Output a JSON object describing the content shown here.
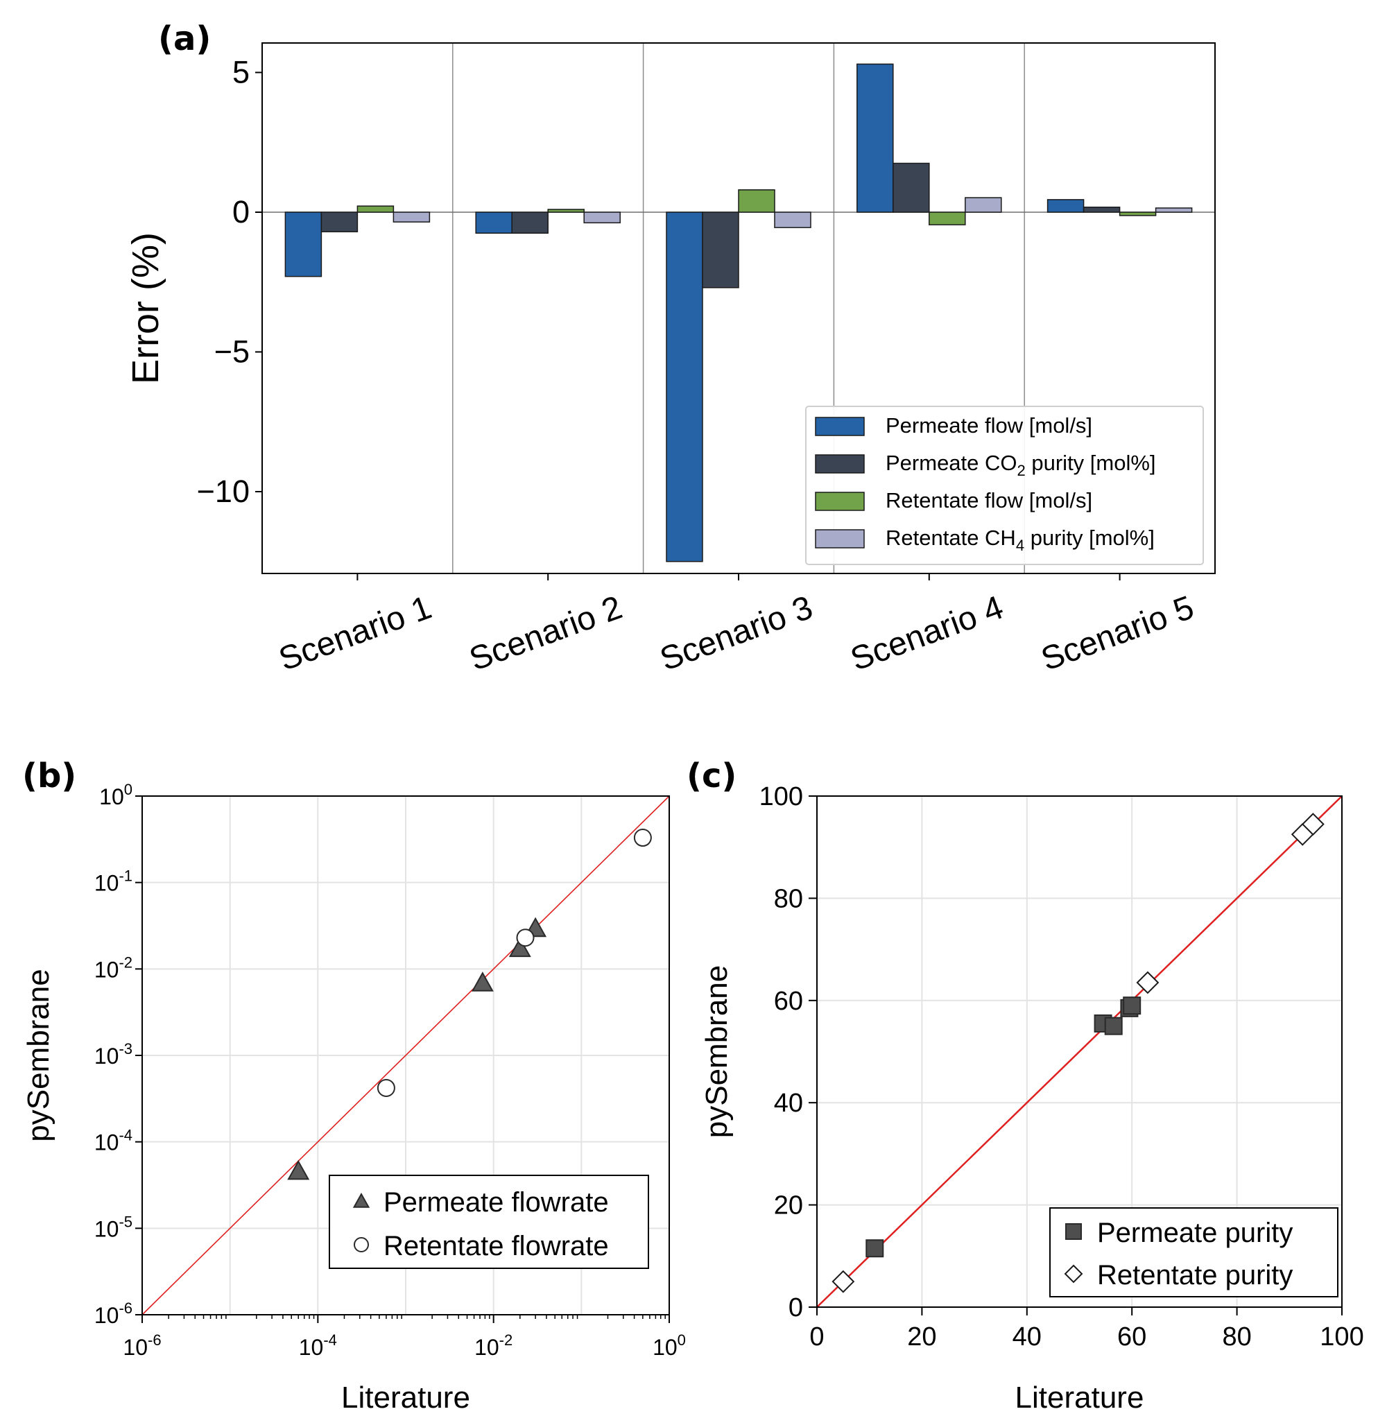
{
  "chart_data": [
    {
      "panel": "(a)",
      "type": "bar",
      "categories": [
        "Scenario 1",
        "Scenario 2",
        "Scenario 3",
        "Scenario 4",
        "Scenario 5"
      ],
      "ylabel": "Error (%)",
      "ylim": [
        -13,
        6
      ],
      "yticks": [
        5,
        0,
        -5,
        -10
      ],
      "ytick_labels": [
        "5",
        "0",
        "−5",
        "−10"
      ],
      "grid": "vertical separators between scenarios",
      "legend_position": "lower-right",
      "series": [
        {
          "name": "Permeate flow [mol/s]",
          "label_main": "Permeate flow [mol/s]",
          "color": "#2563a6",
          "values": [
            -2.3,
            -0.75,
            -12.5,
            5.3,
            0.45
          ]
        },
        {
          "name": "Permeate CO2 purity [mol%]",
          "label_pre": "Permeate CO",
          "label_sub": "2",
          "label_post": " purity [mol%]",
          "color": "#3b4452",
          "values": [
            -0.7,
            -0.75,
            -2.7,
            1.75,
            0.18
          ]
        },
        {
          "name": "Retentate flow [mol/s]",
          "label_main": "Retentate flow [mol/s]",
          "color": "#72a24a",
          "values": [
            0.22,
            0.1,
            0.8,
            -0.45,
            -0.12
          ]
        },
        {
          "name": "Retentate CH4 purity [mol%]",
          "label_pre": "Retentate CH",
          "label_sub": "4",
          "label_post": " purity [mol%]",
          "color": "#a9abcb",
          "values": [
            -0.35,
            -0.38,
            -0.55,
            0.52,
            0.15
          ]
        }
      ]
    },
    {
      "panel": "(b)",
      "type": "scatter",
      "xscale": "log",
      "yscale": "log",
      "xlabel": "Literature",
      "ylabel": "pySembrane",
      "xlim_exp": [
        -6,
        0
      ],
      "ylim_exp": [
        -6,
        0
      ],
      "xtick_exps": [
        -6,
        -4,
        -2,
        0
      ],
      "ytick_exps": [
        -6,
        -5,
        -4,
        -3,
        -2,
        -1,
        0
      ],
      "legend_position": "lower-right",
      "reference_line": "y = x",
      "series": [
        {
          "name": "Permeate flowrate",
          "marker": "triangle",
          "x": [
            6e-05,
            0.0075,
            0.02,
            0.03
          ],
          "y": [
            4.5e-05,
            0.0068,
            0.017,
            0.029
          ]
        },
        {
          "name": "Retentate flowrate",
          "marker": "circle",
          "x": [
            0.0006,
            0.023,
            0.5
          ],
          "y": [
            0.00042,
            0.023,
            0.33
          ]
        }
      ]
    },
    {
      "panel": "(c)",
      "type": "scatter",
      "xlabel": "Literature",
      "ylabel": "pySembrane",
      "xlim": [
        0,
        100
      ],
      "ylim": [
        0,
        100
      ],
      "xticks": [
        0,
        20,
        40,
        60,
        80,
        100
      ],
      "yticks": [
        0,
        20,
        40,
        60,
        80,
        100
      ],
      "legend_position": "lower-right",
      "reference_line": "y = x",
      "series": [
        {
          "name": "Permeate purity",
          "marker": "square",
          "x": [
            11,
            54.5,
            56.5,
            59.5,
            60
          ],
          "y": [
            11.5,
            55.5,
            55.0,
            58.5,
            59.0
          ]
        },
        {
          "name": "Retentate purity",
          "marker": "diamond",
          "x": [
            5,
            63,
            92.5,
            94.5
          ],
          "y": [
            5,
            63.5,
            92.5,
            94.5
          ]
        }
      ]
    }
  ],
  "labels": {
    "a": "(a)",
    "b": "(b)",
    "c": "(c)"
  }
}
